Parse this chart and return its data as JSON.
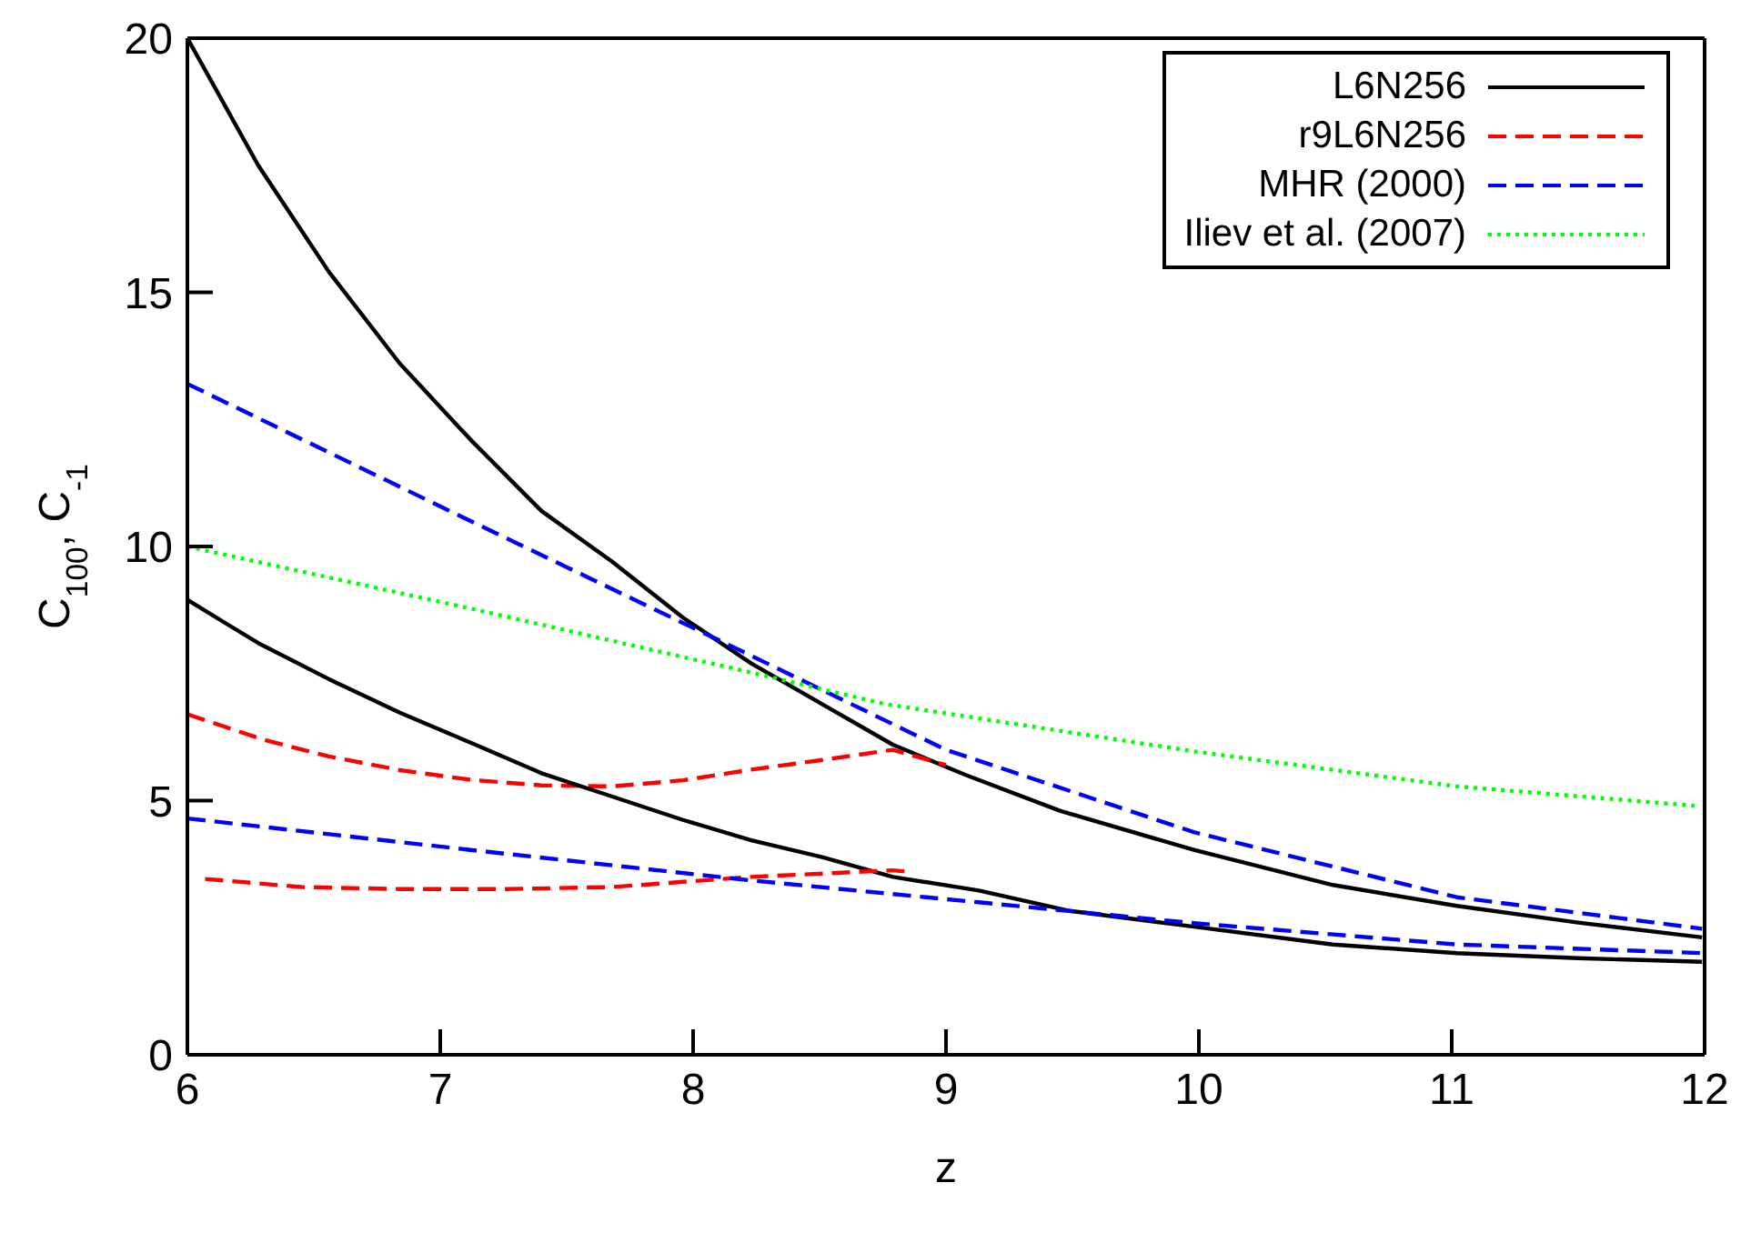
{
  "chart_data": {
    "type": "line",
    "xlabel": "z",
    "ylabel": "C$_{100}$,  C$_{-1}$",
    "xlim": [
      6,
      12
    ],
    "xticks": [
      6,
      7,
      8,
      9,
      10,
      11,
      12
    ],
    "ylim": [
      0,
      20
    ],
    "yticks": [
      0,
      5,
      10,
      15,
      20
    ],
    "legend": "top right",
    "marker": "none",
    "series": [
      {
        "name": "L6N256",
        "color": "#000000",
        "line_style": "solid",
        "x": [
          6,
          6.28,
          6.56,
          6.84,
          7.12,
          7.4,
          7.68,
          7.96,
          8.23,
          8.51,
          8.79,
          9.08,
          9.45,
          9.98,
          10.53,
          11.02,
          11.5,
          11.99
        ],
        "values": [
          20,
          17.5,
          15.4,
          13.6,
          12.1,
          10.7,
          9.7,
          8.6,
          7.7,
          6.9,
          6.1,
          5.5,
          4.8,
          4.03,
          3.34,
          2.93,
          2.6,
          2.31
        ]
      },
      {
        "name": "r9L6N256",
        "color": "#ff0000",
        "line_style": "dashed",
        "x": [
          6,
          6.3,
          6.56,
          6.84,
          7.12,
          7.4,
          7.68,
          7.96,
          8.23,
          8.51,
          8.79,
          9.0
        ],
        "values": [
          6.7,
          6.2,
          5.87,
          5.6,
          5.41,
          5.3,
          5.28,
          5.4,
          5.61,
          5.8,
          6.0,
          5.7
        ]
      },
      {
        "name": "MHR (2000)",
        "color": "#0000ff",
        "line_style": "dashed",
        "x": [
          6,
          7.12,
          8.23,
          9,
          9.98,
          11.02,
          11.99
        ],
        "values": [
          13.2,
          10.5,
          7.85,
          6.0,
          4.38,
          3.1,
          2.48
        ]
      },
      {
        "name": "Iliev et al. (2007)",
        "color": "#00ff00",
        "line_style": "dotted",
        "x": [
          6,
          7.12,
          8.23,
          8.76,
          9.98,
          11.02,
          11.96
        ],
        "values": [
          10,
          8.78,
          7.52,
          6.9,
          5.97,
          5.28,
          4.9
        ]
      },
      {
        "color": "#000000",
        "line_style": "solid",
        "x": [
          6,
          6.28,
          6.56,
          6.84,
          7.12,
          7.4,
          7.68,
          7.96,
          8.23,
          8.51,
          8.79,
          9.13,
          9.49,
          9.98,
          10.53,
          11.02,
          11.5,
          11.99
        ],
        "values": [
          8.95,
          8.1,
          7.39,
          6.73,
          6.14,
          5.54,
          5.08,
          4.62,
          4.22,
          3.89,
          3.5,
          3.23,
          2.83,
          2.52,
          2.17,
          2.0,
          1.9,
          1.83
        ]
      },
      {
        "color": "#ff0000",
        "line_style": "dashed",
        "x": [
          6.07,
          6.45,
          6.84,
          7.26,
          7.68,
          8.23,
          8.79,
          8.85
        ],
        "values": [
          3.46,
          3.3,
          3.26,
          3.26,
          3.3,
          3.5,
          3.63,
          3.6
        ]
      },
      {
        "color": "#0000ff",
        "line_style": "dashed",
        "x": [
          6,
          7.12,
          8.23,
          9.13,
          9.98,
          11.02,
          11.99
        ],
        "values": [
          4.65,
          4.03,
          3.43,
          3.0,
          2.59,
          2.17,
          2.0
        ]
      }
    ]
  }
}
